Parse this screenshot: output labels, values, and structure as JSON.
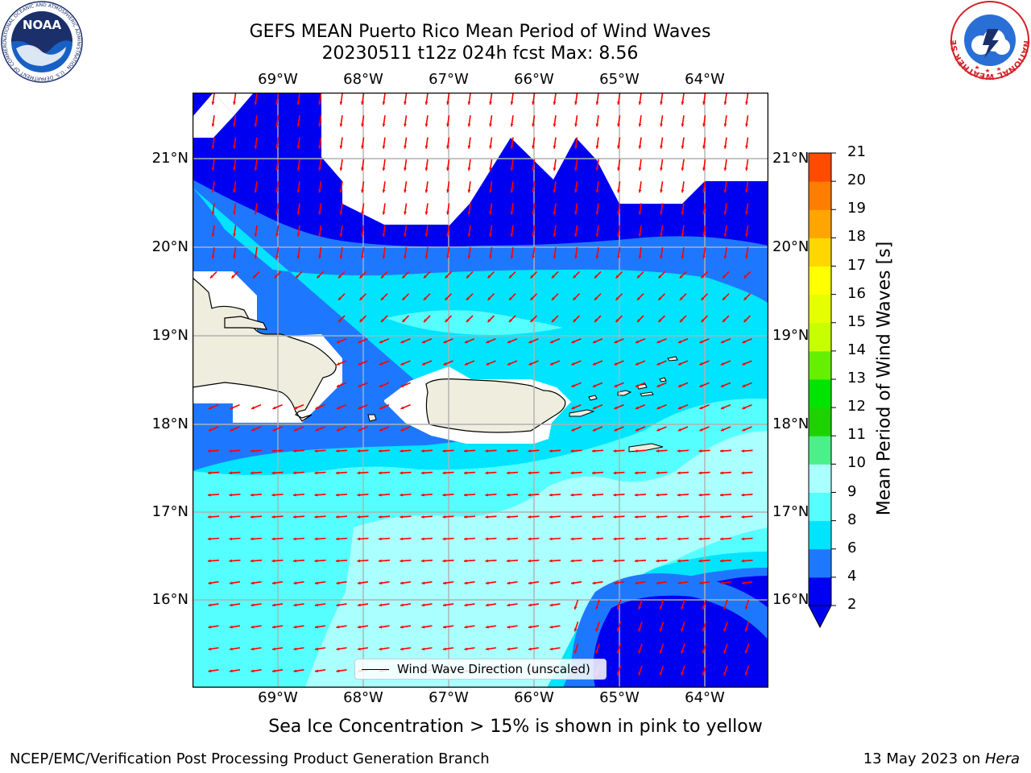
{
  "header": {
    "title_line1": "GEFS MEAN Puerto Rico Mean Period of Wind Waves",
    "title_line2": "20230511 t12z 024h fcst   Max: 8.56"
  },
  "map": {
    "lon_labels": [
      "69°W",
      "68°W",
      "67°W",
      "66°W",
      "65°W",
      "64°W"
    ],
    "lat_labels": [
      "21°N",
      "20°N",
      "19°N",
      "18°N",
      "17°N",
      "16°N"
    ],
    "lon_range": [
      -70.0,
      -63.3
    ],
    "lat_range": [
      15.0,
      21.75
    ],
    "grid": true
  },
  "legend": {
    "label": "Wind Wave Direction (unscaled)",
    "position": "lower-center"
  },
  "colorbar": {
    "title": "Mean Period of Wind Waves [s]",
    "ticks": [
      "2",
      "4",
      "6",
      "8",
      "9",
      "10",
      "11",
      "12",
      "13",
      "14",
      "15",
      "16",
      "17",
      "18",
      "19",
      "20",
      "21"
    ],
    "colors": [
      "#0000f0",
      "#1e78ff",
      "#00e4ff",
      "#55ffff",
      "#aaffff",
      "#4cf08a",
      "#1ed200",
      "#00e400",
      "#64f000",
      "#c8ff00",
      "#e6ff00",
      "#ffff00",
      "#ffd700",
      "#ffa500",
      "#ff7d00",
      "#ff4b00",
      "#ff1900"
    ],
    "extend_color": "#0000f0"
  },
  "note": "Sea Ice Concentration > 15% is shown in pink to yellow",
  "footer": {
    "left": "NCEP/EMC/Verification Post Processing Product Generation Branch",
    "right_prefix": "13 May 2023 on ",
    "right_host": "Hera"
  },
  "logos": {
    "noaa_text": "NOAA",
    "noaa_ring": "NATIONAL OCEANIC AND ATMOSPHERIC ADMINISTRATION · U.S. DEPARTMENT OF COMMERCE",
    "nws_ring": "NATIONAL WEATHER SERVICE"
  },
  "colors": {
    "land": "#efedde",
    "arrow": "#ff0000",
    "grid": "#b0b0b0"
  }
}
